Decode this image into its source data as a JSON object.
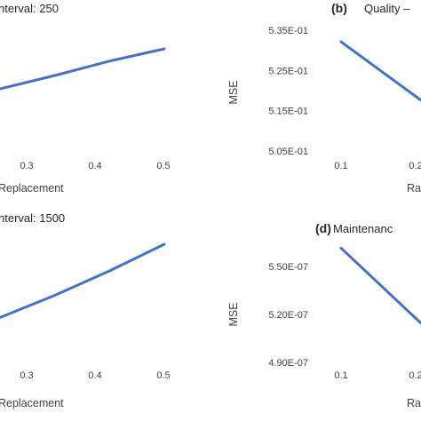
{
  "chart_data": [
    {
      "panel": "a",
      "type": "line",
      "letter": "",
      "title": "nterval: 250",
      "xlabel": "Replacement",
      "ylabel": "",
      "x_ticks": [
        "0.3",
        "0.4",
        "0.5"
      ],
      "y_ticks": [],
      "series": [
        {
          "x": [
            0.2,
            0.3,
            0.4,
            0.5
          ],
          "y": [
            0.5,
            0.56,
            0.625,
            0.68
          ]
        }
      ],
      "xlim": [
        0.2,
        0.5
      ],
      "ylim": [
        0.3,
        0.9
      ],
      "color": "#4472C4"
    },
    {
      "panel": "b",
      "type": "line",
      "letter": "(b)",
      "title": "Quality –",
      "xlabel": "Ra",
      "ylabel": "MSE",
      "x_ticks": [
        "0.1",
        "0.2"
      ],
      "y_ticks": [
        "5.35E-01",
        "5.25E-01",
        "5.15E-01",
        "5.05E-01"
      ],
      "series": [
        {
          "x": [
            0.1,
            0.2
          ],
          "y": [
            0.5321,
            0.5176
          ]
        }
      ],
      "xlim": [
        0.1,
        0.2
      ],
      "ylim": [
        0.505,
        0.535
      ],
      "color": "#4472C4"
    },
    {
      "panel": "c",
      "type": "line",
      "letter": "",
      "title": "nterval: 1500",
      "xlabel": "Replacement",
      "ylabel": "",
      "x_ticks": [
        "0.3",
        "0.4",
        "0.5"
      ],
      "y_ticks": [],
      "series": [
        {
          "x": [
            0.2,
            0.3,
            0.4,
            0.5
          ],
          "y": [
            0.43,
            0.53,
            0.64,
            0.76
          ]
        }
      ],
      "xlim": [
        0.2,
        0.5
      ],
      "ylim": [
        0.3,
        0.9
      ],
      "color": "#4472C4"
    },
    {
      "panel": "d",
      "type": "line",
      "letter": "(d)",
      "title": "Maintenanc",
      "xlabel": "Ra",
      "ylabel": "MSE",
      "x_ticks": [
        "0.1",
        "0.2"
      ],
      "y_ticks": [
        "5.50E-07",
        "5.20E-07",
        "4.90E-07"
      ],
      "series": [
        {
          "x": [
            0.1,
            0.2
          ],
          "y": [
            5.615e-07,
            5.145e-07
          ]
        }
      ],
      "xlim": [
        0.1,
        0.2
      ],
      "ylim": [
        4.9e-07,
        5.5e-07
      ],
      "color": "#4472C4"
    }
  ]
}
